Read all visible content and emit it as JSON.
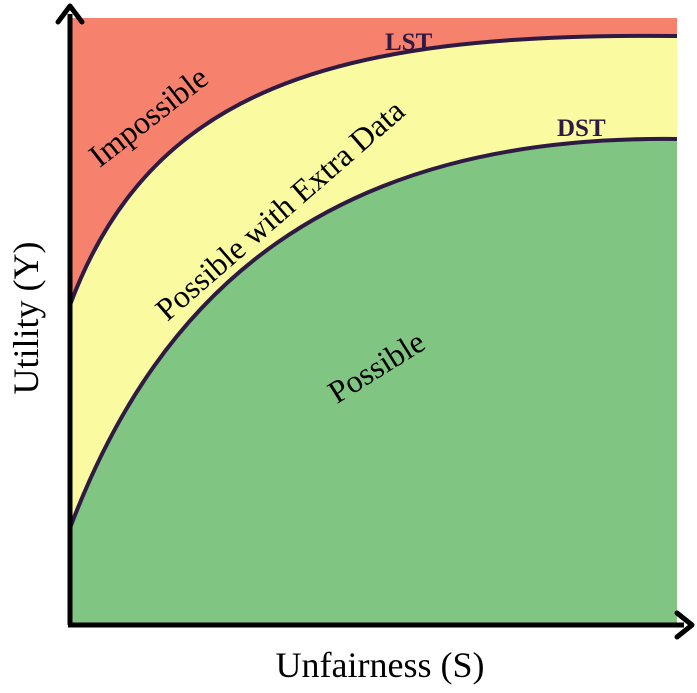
{
  "axes": {
    "x_label": "Unfairness (S)",
    "y_label": "Utility (Y)"
  },
  "curves": {
    "upper": {
      "label": "LST"
    },
    "lower": {
      "label": "DST"
    }
  },
  "regions": {
    "impossible": {
      "label": "Impossible",
      "color": "#f6826e"
    },
    "extra_data": {
      "label": "Possible with Extra Data",
      "color": "#fafaa0"
    },
    "possible": {
      "label": "Possible",
      "color": "#80c582"
    }
  },
  "colors": {
    "curve": "#2f1a44",
    "axis": "#000000",
    "text": "#000000"
  }
}
